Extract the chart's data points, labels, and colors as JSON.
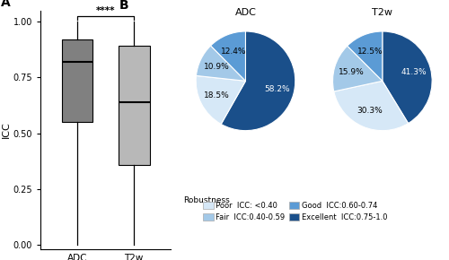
{
  "boxplot": {
    "ADC": {
      "whislo": 0.0,
      "q1": 0.55,
      "med": 0.82,
      "q3": 0.92,
      "whishi": 1.0,
      "color": "#808080"
    },
    "T2w": {
      "whislo": 0.0,
      "q1": 0.36,
      "med": 0.64,
      "q3": 0.89,
      "whishi": 1.0,
      "color": "#b8b8b8"
    },
    "ylabel": "ICC",
    "ylim": [
      -0.02,
      1.05
    ],
    "yticks": [
      0.0,
      0.25,
      0.5,
      0.75,
      1.0
    ],
    "significance": "****"
  },
  "pie_ADC": {
    "title": "ADC",
    "values": [
      58.2,
      18.5,
      10.9,
      12.4
    ],
    "labels": [
      "58.2%",
      "18.5%",
      "10.9%",
      "12.4%"
    ],
    "label_colors": [
      "white",
      "black",
      "black",
      "black"
    ],
    "colors": [
      "#1a4f8a",
      "#d6e8f7",
      "#a3c9e8",
      "#5b9bd5"
    ],
    "startangle": 90
  },
  "pie_T2w": {
    "title": "T2w",
    "values": [
      41.3,
      30.3,
      15.9,
      12.5
    ],
    "labels": [
      "41.3%",
      "30.3%",
      "15.9%",
      "12.5%"
    ],
    "label_colors": [
      "white",
      "black",
      "black",
      "black"
    ],
    "colors": [
      "#1a4f8a",
      "#d6e8f7",
      "#a3c9e8",
      "#5b9bd5"
    ],
    "startangle": 90
  },
  "legend": {
    "robustness_label": "Robustness",
    "entries_row1": [
      {
        "label": "Poor  ICC: <0.40",
        "color": "#d6e8f7"
      },
      {
        "label": "Fair  ICC:0.40-0.59",
        "color": "#a3c9e8"
      }
    ],
    "entries_row2": [
      {
        "label": "Good  ICC:0.60-0.74",
        "color": "#5b9bd5"
      },
      {
        "label": "Excellent  ICC:0.75-1.0",
        "color": "#1a4f8a"
      }
    ]
  },
  "panel_labels": [
    "A",
    "B"
  ],
  "background_color": "#ffffff"
}
